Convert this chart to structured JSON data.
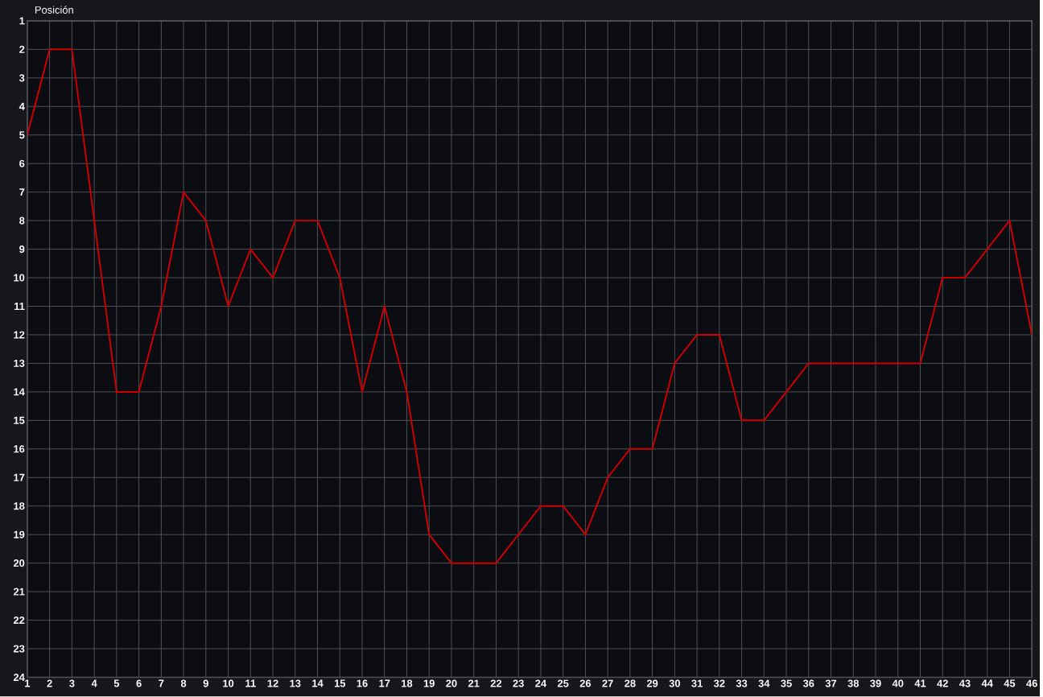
{
  "chart_data": {
    "type": "line",
    "ylabel": "Posición",
    "x": [
      1,
      2,
      3,
      4,
      5,
      6,
      7,
      8,
      9,
      10,
      11,
      12,
      13,
      14,
      15,
      16,
      17,
      18,
      19,
      20,
      21,
      22,
      23,
      24,
      25,
      26,
      27,
      28,
      29,
      30,
      31,
      32,
      33,
      34,
      35,
      36,
      37,
      38,
      39,
      40,
      41,
      42,
      43,
      44,
      45,
      46
    ],
    "series": [
      {
        "color": "#cc0000",
        "values": [
          5,
          2,
          2,
          8,
          14,
          14,
          11,
          7,
          8,
          11,
          9,
          10,
          8,
          8,
          10,
          14,
          11,
          14,
          19,
          20,
          20,
          20,
          19,
          18,
          18,
          19,
          17,
          16,
          16,
          13,
          12,
          12,
          15,
          15,
          14,
          13,
          13,
          13,
          13,
          13,
          13,
          10,
          10,
          9,
          8,
          12
        ]
      }
    ],
    "xlim": [
      1,
      46
    ],
    "ylim": [
      24,
      1
    ],
    "xticks": [
      1,
      2,
      3,
      4,
      5,
      6,
      7,
      8,
      9,
      10,
      11,
      12,
      13,
      14,
      15,
      16,
      17,
      18,
      19,
      20,
      21,
      22,
      23,
      24,
      25,
      26,
      27,
      28,
      29,
      30,
      31,
      32,
      33,
      34,
      35,
      36,
      37,
      38,
      39,
      40,
      41,
      42,
      43,
      44,
      45,
      46
    ],
    "yticks": [
      1,
      2,
      3,
      4,
      5,
      6,
      7,
      8,
      9,
      10,
      11,
      12,
      13,
      14,
      15,
      16,
      17,
      18,
      19,
      20,
      21,
      22,
      23,
      24
    ],
    "grid": true,
    "marker": "none",
    "line_style": "solid"
  }
}
